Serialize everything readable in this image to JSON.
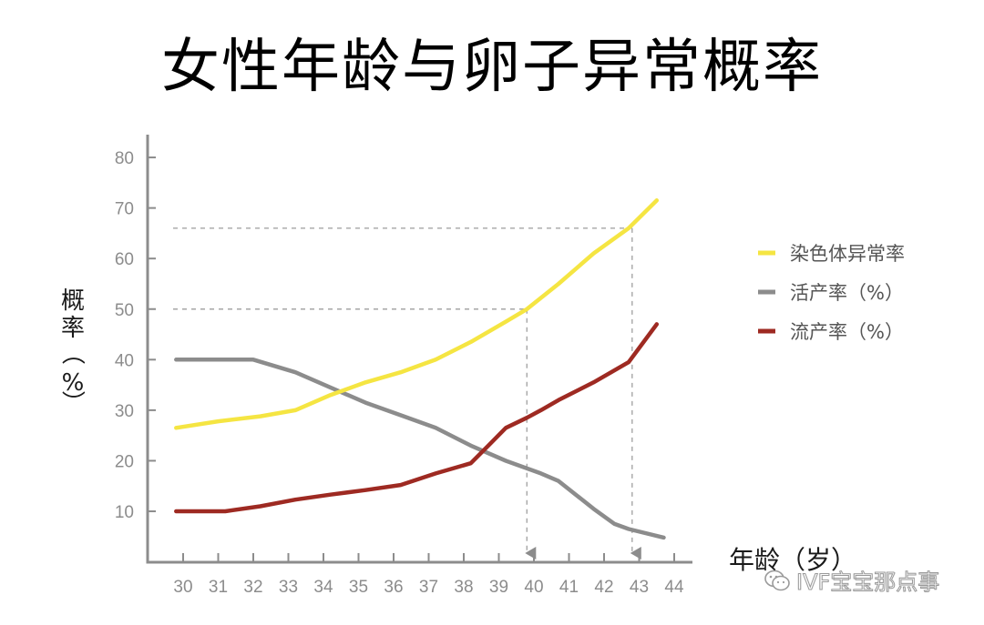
{
  "title": "女性年龄与卵子异常概率",
  "watermark": {
    "text": "IVF宝宝那点事",
    "icon": "wechat-icon"
  },
  "chart_data": {
    "type": "line",
    "title": "女性年龄与卵子异常概率",
    "xlabel": "年龄（岁）",
    "ylabel": "概率（%）",
    "x": [
      30,
      31,
      32,
      33,
      34,
      35,
      36,
      37,
      38,
      39,
      40,
      41,
      42,
      43,
      44
    ],
    "xlim": [
      29.5,
      44.5
    ],
    "ylim": [
      0,
      85
    ],
    "yticks": [
      10,
      20,
      30,
      40,
      50,
      60,
      70,
      80
    ],
    "grid": false,
    "legend_position": "right",
    "series": [
      {
        "name": "染色体异常率",
        "color": "#f5e542",
        "points": [
          [
            29.8,
            26.5
          ],
          [
            31,
            27.8
          ],
          [
            32.2,
            28.8
          ],
          [
            33.2,
            30
          ],
          [
            34.2,
            33
          ],
          [
            35.2,
            35.5
          ],
          [
            36.2,
            37.5
          ],
          [
            37.2,
            40
          ],
          [
            38.2,
            43.5
          ],
          [
            39.2,
            47.5
          ],
          [
            39.8,
            50
          ],
          [
            40.7,
            55
          ],
          [
            41.7,
            61
          ],
          [
            42.7,
            66
          ],
          [
            43.5,
            71.5
          ]
        ]
      },
      {
        "name": "活产率（%）",
        "color": "#8c8c8c",
        "points": [
          [
            29.8,
            40
          ],
          [
            31,
            40
          ],
          [
            32,
            40
          ],
          [
            33.2,
            37.5
          ],
          [
            34.2,
            34.5
          ],
          [
            35.2,
            31.5
          ],
          [
            36.2,
            29
          ],
          [
            37.2,
            26.5
          ],
          [
            38.2,
            23
          ],
          [
            39.2,
            20
          ],
          [
            40.2,
            17.5
          ],
          [
            40.7,
            16
          ],
          [
            41.7,
            10.5
          ],
          [
            42.3,
            7.5
          ],
          [
            42.7,
            6.5
          ],
          [
            43.7,
            4.8
          ]
        ]
      },
      {
        "name": "流产率（%）",
        "color": "#9e2a22",
        "points": [
          [
            29.8,
            10
          ],
          [
            31.2,
            10
          ],
          [
            32.2,
            11
          ],
          [
            33.2,
            12.3
          ],
          [
            34.2,
            13.3
          ],
          [
            35.2,
            14.2
          ],
          [
            36.2,
            15.2
          ],
          [
            37.2,
            17.5
          ],
          [
            38.2,
            19.5
          ],
          [
            38.7,
            23
          ],
          [
            39.2,
            26.5
          ],
          [
            39.8,
            28.5
          ],
          [
            40.2,
            30
          ],
          [
            40.7,
            32
          ],
          [
            41.7,
            35.5
          ],
          [
            42.7,
            39.5
          ],
          [
            43.5,
            47
          ]
        ]
      }
    ],
    "annotations": [
      {
        "type": "reference",
        "x": 39.8,
        "y": 50
      },
      {
        "type": "reference",
        "x": 42.8,
        "y": 66
      }
    ]
  }
}
